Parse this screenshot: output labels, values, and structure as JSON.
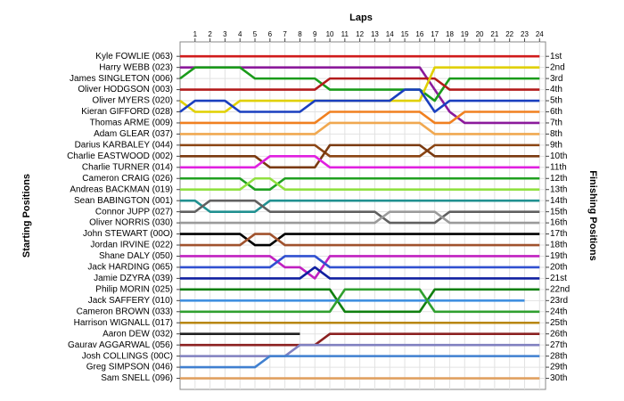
{
  "chart_data": {
    "type": "line",
    "title": "Laps",
    "y_label": "Starting Positions",
    "y2_label": "Finishing Positions",
    "x": [
      0,
      1,
      2,
      3,
      4,
      5,
      6,
      7,
      8,
      9,
      10,
      11,
      12,
      13,
      14,
      15,
      16,
      17,
      18,
      19,
      20,
      21,
      22,
      23,
      24
    ],
    "xlim": [
      0,
      24.4
    ],
    "xticks": [
      1,
      2,
      3,
      4,
      5,
      6,
      7,
      8,
      9,
      10,
      11,
      12,
      13,
      14,
      15,
      16,
      17,
      18,
      19,
      20,
      21,
      22,
      23,
      24
    ],
    "ylim": [
      31,
      -0.3
    ],
    "yticks": [
      {
        "value": 1,
        "label": "1st"
      },
      {
        "value": 2,
        "label": "2nd"
      },
      {
        "value": 3,
        "label": "3rd"
      },
      {
        "value": 4,
        "label": "4th"
      },
      {
        "value": 5,
        "label": "5th"
      },
      {
        "value": 6,
        "label": "6th"
      },
      {
        "value": 7,
        "label": "7th"
      },
      {
        "value": 8,
        "label": "8th"
      },
      {
        "value": 9,
        "label": "9th"
      },
      {
        "value": 10,
        "label": "10th"
      },
      {
        "value": 11,
        "label": "11th"
      },
      {
        "value": 12,
        "label": "12th"
      },
      {
        "value": 13,
        "label": "13th"
      },
      {
        "value": 14,
        "label": "14th"
      },
      {
        "value": 15,
        "label": "15th"
      },
      {
        "value": 16,
        "label": "16th"
      },
      {
        "value": 17,
        "label": "17th"
      },
      {
        "value": 18,
        "label": "18th"
      },
      {
        "value": 19,
        "label": "19th"
      },
      {
        "value": 20,
        "label": "20th"
      },
      {
        "value": 21,
        "label": "21st"
      },
      {
        "value": 22,
        "label": "22nd"
      },
      {
        "value": 23,
        "label": "23rd"
      },
      {
        "value": 24,
        "label": "24th"
      },
      {
        "value": 25,
        "label": "25th"
      },
      {
        "value": 26,
        "label": "26th"
      },
      {
        "value": 27,
        "label": "27th"
      },
      {
        "value": 28,
        "label": "28th"
      },
      {
        "value": 29,
        "label": "29th"
      },
      {
        "value": 30,
        "label": "30th"
      }
    ],
    "grid": true,
    "series": [
      {
        "name": "Kyle FOWLIE (063)",
        "color": "#d01c1c",
        "values": [
          1,
          1,
          1,
          1,
          1,
          1,
          1,
          1,
          1,
          1,
          1,
          1,
          1,
          1,
          1,
          1,
          1,
          1,
          1,
          1,
          1,
          1,
          1,
          1,
          1
        ]
      },
      {
        "name": "Harry WEBB (023)",
        "color": "#8b1a9b",
        "values": [
          2,
          2,
          2,
          2,
          2,
          2,
          2,
          2,
          2,
          2,
          2,
          2,
          2,
          2,
          2,
          2,
          2,
          4,
          6,
          7,
          7,
          7,
          7,
          7,
          7
        ]
      },
      {
        "name": "James SINGLETON (006)",
        "color": "#1a9b1a",
        "values": [
          3,
          2,
          2,
          2,
          2,
          3,
          3,
          3,
          3,
          3,
          4,
          4,
          4,
          4,
          4,
          4,
          4,
          5,
          3,
          3,
          3,
          3,
          3,
          3,
          3
        ]
      },
      {
        "name": "Oliver HODGSON (003)",
        "color": "#b31b1b",
        "values": [
          4,
          4,
          4,
          4,
          4,
          4,
          4,
          4,
          4,
          4,
          3,
          3,
          3,
          3,
          3,
          3,
          3,
          3,
          4,
          4,
          4,
          4,
          4,
          4,
          4
        ]
      },
      {
        "name": "Oliver MYERS (020)",
        "color": "#e0d000",
        "values": [
          5,
          6,
          6,
          6,
          5,
          5,
          5,
          5,
          5,
          5,
          5,
          5,
          5,
          5,
          5,
          5,
          5,
          2,
          2,
          2,
          2,
          2,
          2,
          2,
          2
        ]
      },
      {
        "name": "Kieran GIFFORD (028)",
        "color": "#1a3fbf",
        "values": [
          6,
          5,
          5,
          5,
          6,
          6,
          6,
          6,
          6,
          5,
          5,
          5,
          5,
          5,
          5,
          4,
          4,
          6,
          5,
          5,
          5,
          5,
          5,
          5,
          5
        ]
      },
      {
        "name": "Thomas ARME (009)",
        "color": "#f08020",
        "values": [
          7,
          7,
          7,
          7,
          7,
          7,
          7,
          7,
          7,
          7,
          6,
          6,
          6,
          6,
          6,
          6,
          6,
          7,
          7,
          6,
          6,
          6,
          6,
          6,
          6
        ]
      },
      {
        "name": "Adam GLEAR (037)",
        "color": "#f0a850",
        "values": [
          8,
          8,
          8,
          8,
          8,
          8,
          8,
          8,
          8,
          8,
          7,
          7,
          7,
          7,
          7,
          7,
          7,
          8,
          8,
          8,
          8,
          8,
          8,
          8,
          8
        ]
      },
      {
        "name": "Darius KARBALEY (044)",
        "color": "#8b4513",
        "values": [
          9,
          9,
          9,
          9,
          9,
          9,
          9,
          9,
          9,
          9,
          10,
          10,
          10,
          10,
          10,
          10,
          10,
          9,
          9,
          9,
          9,
          9,
          9,
          9,
          9
        ]
      },
      {
        "name": "Charlie EASTWOOD (002)",
        "color": "#7a3a10",
        "values": [
          10,
          10,
          10,
          10,
          10,
          10,
          11,
          11,
          11,
          11,
          9,
          9,
          9,
          9,
          9,
          9,
          9,
          10,
          10,
          10,
          10,
          10,
          10,
          10,
          10
        ]
      },
      {
        "name": "Charlie TURNER (014)",
        "color": "#e020e0",
        "values": [
          11,
          11,
          11,
          11,
          11,
          11,
          10,
          10,
          10,
          10,
          11,
          11,
          11,
          11,
          11,
          11,
          11,
          11,
          11,
          11,
          11,
          11,
          11,
          11,
          11
        ]
      },
      {
        "name": "Cameron CRAIG (026)",
        "color": "#20a020",
        "values": [
          12,
          12,
          12,
          12,
          12,
          13,
          13,
          12,
          12,
          12,
          12,
          12,
          12,
          12,
          12,
          12,
          12,
          12,
          12,
          12,
          12,
          12,
          12,
          12,
          12
        ]
      },
      {
        "name": "Andreas BACKMAN (019)",
        "color": "#90e040",
        "values": [
          13,
          13,
          13,
          13,
          13,
          12,
          12,
          13,
          13,
          13,
          13,
          13,
          13,
          13,
          13,
          13,
          13,
          13,
          13,
          13,
          13,
          13,
          13,
          13,
          13
        ]
      },
      {
        "name": "Sean BABINGTON (001)",
        "color": "#209090",
        "values": [
          14,
          14,
          15,
          15,
          15,
          15,
          14,
          14,
          14,
          14,
          14,
          14,
          14,
          14,
          14,
          14,
          14,
          14,
          14,
          14,
          14,
          14,
          14,
          14,
          14
        ]
      },
      {
        "name": "Connor JUPP (027)",
        "color": "#606060",
        "values": [
          15,
          15,
          14,
          14,
          14,
          14,
          15,
          15,
          15,
          15,
          15,
          15,
          15,
          15,
          16,
          16,
          16,
          16,
          15,
          15,
          15,
          15,
          15,
          15,
          15
        ]
      },
      {
        "name": "Oliver NORRIS (030)",
        "color": "#9a9a9a",
        "values": [
          16,
          16,
          16,
          16,
          16,
          16,
          16,
          16,
          16,
          16,
          16,
          16,
          16,
          16,
          15,
          15,
          15,
          15,
          16,
          16,
          16,
          16,
          16,
          16,
          16
        ]
      },
      {
        "name": "John STEWART (00O)",
        "color": "#000000",
        "values": [
          17,
          17,
          17,
          17,
          17,
          18,
          18,
          17,
          17,
          17,
          17,
          17,
          17,
          17,
          17,
          17,
          17,
          17,
          17,
          17,
          17,
          17,
          17,
          17,
          17
        ]
      },
      {
        "name": "Jordan IRVINE (022)",
        "color": "#a0522d",
        "values": [
          18,
          18,
          18,
          18,
          18,
          17,
          17,
          18,
          18,
          18,
          18,
          18,
          18,
          18,
          18,
          18,
          18,
          18,
          18,
          18,
          18,
          18,
          18,
          18,
          18
        ]
      },
      {
        "name": "Shane DALY (050)",
        "color": "#c020c0",
        "values": [
          19,
          19,
          19,
          19,
          19,
          19,
          19,
          20,
          20,
          21,
          19,
          19,
          19,
          19,
          19,
          19,
          19,
          19,
          19,
          19,
          19,
          19,
          19,
          19,
          19
        ]
      },
      {
        "name": "Jack HARDING (065)",
        "color": "#3050d0",
        "values": [
          20,
          20,
          20,
          20,
          20,
          20,
          20,
          19,
          19,
          19,
          20,
          20,
          20,
          20,
          20,
          20,
          20,
          20,
          20,
          20,
          20,
          20,
          20,
          20,
          20
        ]
      },
      {
        "name": "Jamie DZYRA (039)",
        "color": "#1020a0",
        "values": [
          21,
          21,
          21,
          21,
          21,
          21,
          21,
          21,
          21,
          20,
          21,
          21,
          21,
          21,
          21,
          21,
          21,
          21,
          21,
          21,
          21,
          21,
          21,
          21,
          21
        ]
      },
      {
        "name": "Philip MORIN (025)",
        "color": "#108010",
        "values": [
          22,
          22,
          22,
          22,
          22,
          22,
          22,
          22,
          22,
          22,
          22,
          24,
          24,
          24,
          24,
          24,
          24,
          22,
          22,
          22,
          22,
          22,
          22,
          22,
          22
        ]
      },
      {
        "name": "Jack SAFFERY (010)",
        "color": "#4090e0",
        "values": [
          23,
          23,
          23,
          23,
          23,
          23,
          23,
          23,
          23,
          23,
          23,
          23,
          23,
          23,
          23,
          23,
          23,
          23,
          23,
          23,
          23,
          23,
          23,
          23,
          null
        ]
      },
      {
        "name": "Cameron BROWN (033)",
        "color": "#30a030",
        "values": [
          24,
          24,
          24,
          24,
          24,
          24,
          24,
          24,
          24,
          24,
          24,
          22,
          22,
          22,
          22,
          22,
          22,
          24,
          24,
          24,
          24,
          24,
          24,
          24,
          24
        ]
      },
      {
        "name": "Harrison WIGNALL (017)",
        "color": "#b8860b",
        "values": [
          25,
          25,
          25,
          25,
          25,
          25,
          25,
          25,
          25,
          25,
          25,
          25,
          25,
          25,
          25,
          25,
          25,
          25,
          25,
          25,
          25,
          25,
          25,
          25,
          25
        ]
      },
      {
        "name": "Aaron DEW (032)",
        "color": "#202020",
        "values": [
          26,
          26,
          26,
          26,
          26,
          26,
          26,
          26,
          26,
          null,
          null,
          null,
          null,
          null,
          null,
          null,
          null,
          null,
          null,
          null,
          null,
          null,
          null,
          null,
          null
        ]
      },
      {
        "name": "Gaurav AGGARWAL (056)",
        "color": "#8b2020",
        "values": [
          27,
          27,
          27,
          27,
          27,
          27,
          27,
          27,
          27,
          27,
          26,
          26,
          26,
          26,
          26,
          26,
          26,
          26,
          26,
          26,
          26,
          26,
          26,
          26,
          26
        ]
      },
      {
        "name": "Josh COLLINGS (00C)",
        "color": "#8080c0",
        "values": [
          28,
          28,
          28,
          28,
          28,
          28,
          28,
          28,
          27,
          27,
          27,
          27,
          27,
          27,
          27,
          27,
          27,
          27,
          27,
          27,
          27,
          27,
          27,
          27,
          27
        ]
      },
      {
        "name": "Greg SIMPSON (046)",
        "color": "#4080d0",
        "values": [
          29,
          29,
          29,
          29,
          29,
          29,
          28,
          28,
          28,
          28,
          28,
          28,
          28,
          28,
          28,
          28,
          28,
          28,
          28,
          28,
          28,
          28,
          28,
          28,
          28
        ]
      },
      {
        "name": "Sam SNELL (096)",
        "color": "#e0a060",
        "values": [
          30,
          30,
          30,
          30,
          30,
          30,
          30,
          30,
          30,
          30,
          30,
          30,
          30,
          30,
          30,
          30,
          30,
          30,
          30,
          30,
          30,
          30,
          30,
          30,
          30
        ]
      }
    ]
  }
}
